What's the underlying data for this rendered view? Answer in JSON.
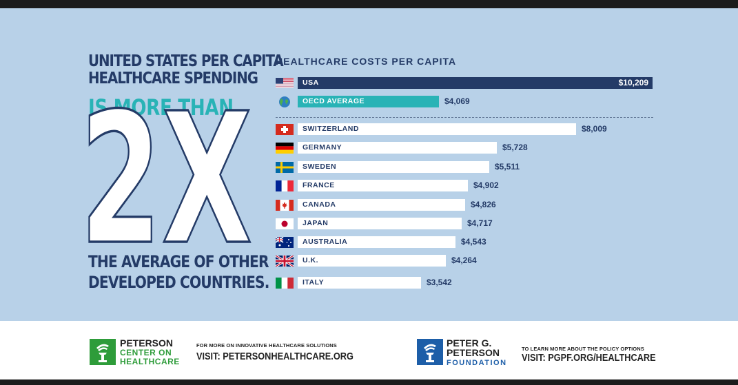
{
  "headline": {
    "line1": "UNITED STATES PER CAPITA",
    "line2": "HEALTHCARE SPENDING",
    "line3": "IS MORE THAN",
    "big": "2X",
    "line4": "THE AVERAGE OF OTHER",
    "line5": "DEVELOPED COUNTRIES."
  },
  "chart_data": {
    "type": "bar",
    "orientation": "horizontal",
    "title": "HEALTHCARE COSTS PER CAPITA",
    "categories": [
      "USA",
      "OECD AVERAGE",
      "SWITZERLAND",
      "GERMANY",
      "SWEDEN",
      "FRANCE",
      "CANADA",
      "JAPAN",
      "AUSTRALIA",
      "U.K.",
      "ITALY"
    ],
    "values": [
      10209,
      4069,
      8009,
      5728,
      5511,
      4902,
      4826,
      4717,
      4543,
      4264,
      3542
    ],
    "value_labels": [
      "$10,209",
      "$4,069",
      "$8,009",
      "$5,728",
      "$5,511",
      "$4,902",
      "$4,826",
      "$4,717",
      "$4,543",
      "$4,264",
      "$3,542"
    ],
    "xlim": [
      0,
      10209
    ],
    "xlabel": "",
    "ylabel": "",
    "grid": false,
    "colors": {
      "usa": "#243b67",
      "oecd": "#29b3b6",
      "other": "#ffffff"
    }
  },
  "footer": {
    "left": {
      "org_line1": "PETERSON",
      "org_line2": "CENTER ON",
      "org_line3": "HEALTHCARE",
      "small": "FOR MORE ON INNOVATIVE HEALTHCARE SOLUTIONS",
      "big": "VISIT: PETERSONHEALTHCARE.ORG",
      "color": "#2e9c3a"
    },
    "right": {
      "org_line1": "PETER G.",
      "org_line2": "PETERSON",
      "org_line3": "FOUNDATION",
      "small": "TO LEARN MORE ABOUT THE POLICY OPTIONS",
      "big": "VISIT: PGPF.ORG/HEALTHCARE",
      "color": "#1d5ea8"
    }
  }
}
